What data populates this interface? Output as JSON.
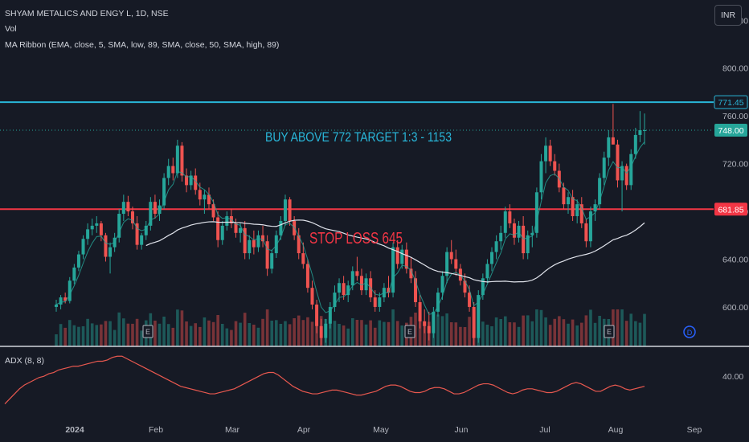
{
  "header": {
    "symbol_line": "SHYAM METALICS AND ENGY L, 1D, NSE",
    "vol_label": "Vol",
    "ma_ribbon_label": "MA Ribbon (EMA, close, 5, SMA, low, 89, SMA, close, 50, SMA, high, 89)"
  },
  "currency_button": "INR",
  "adx_label": "ADX (8, 8)",
  "earnings_marker": "E",
  "dividend_marker": "D",
  "colors": {
    "background": "#161a25",
    "up": "#26a69a",
    "down": "#ef5350",
    "resistance_line": "#29b6d8",
    "support_line": "#f23645",
    "ema_line": "#26a69a",
    "sma_line": "#e0e3eb",
    "adx_line": "#e8584f"
  },
  "chart_data": [
    {
      "type": "candlestick",
      "title": "SHYAM METALICS AND ENGY L, 1D, NSE",
      "y_axis": {
        "range": [
          567,
          857
        ],
        "ticks": [
          "840.00",
          "800.00",
          "760.00",
          "720.00",
          "680.00",
          "640.00",
          "600.00"
        ]
      },
      "x_axis": {
        "labels": [
          "2024",
          "Feb",
          "Mar",
          "Apr",
          "May",
          "Jun",
          "Jul",
          "Aug",
          "Sep"
        ]
      },
      "grid": false,
      "horizontal_lines": [
        {
          "price": 771.45,
          "label": "771.45",
          "role": "resistance"
        },
        {
          "price": 681.85,
          "label": "681.85",
          "role": "support"
        }
      ],
      "last_price": {
        "value": 748.0,
        "label": "748.00"
      },
      "annotations": [
        "BUY ABOVE 772 TARGET 1:3 - 1153",
        "STOP LOSS 645"
      ],
      "series": [
        {
          "kind": "ohlc",
          "values": [
            [
              600,
              606,
              596,
              602
            ],
            [
              602,
              610,
              598,
              608
            ],
            [
              608,
              612,
              603,
              605
            ],
            [
              605,
              625,
              603,
              622
            ],
            [
              622,
              636,
              619,
              633
            ],
            [
              633,
              647,
              630,
              644
            ],
            [
              644,
              660,
              640,
              657
            ],
            [
              657,
              670,
              652,
              665
            ],
            [
              665,
              674,
              660,
              668
            ],
            [
              668,
              676,
              662,
              670
            ],
            [
              670,
              672,
              655,
              660
            ],
            [
              660,
              662,
              638,
              642
            ],
            [
              642,
              654,
              628,
              650
            ],
            [
              650,
              662,
              646,
              658
            ],
            [
              658,
              682,
              654,
              678
            ],
            [
              678,
              694,
              672,
              688
            ],
            [
              688,
              693,
              676,
              680
            ],
            [
              680,
              684,
              665,
              670
            ],
            [
              670,
              676,
              648,
              652
            ],
            [
              652,
              662,
              648,
              660
            ],
            [
              660,
              672,
              656,
              668
            ],
            [
              668,
              692,
              664,
              688
            ],
            [
              688,
              694,
              674,
              678
            ],
            [
              678,
              690,
              672,
              685
            ],
            [
              685,
              712,
              682,
              708
            ],
            [
              708,
              724,
              702,
              718
            ],
            [
              718,
              725,
              706,
              712
            ],
            [
              712,
              740,
              708,
              735
            ],
            [
              735,
              738,
              705,
              710
            ],
            [
              710,
              716,
              696,
              702
            ],
            [
              702,
              714,
              698,
              710
            ],
            [
              710,
              716,
              694,
              698
            ],
            [
              698,
              704,
              685,
              690
            ],
            [
              690,
              698,
              678,
              694
            ],
            [
              694,
              700,
              682,
              686
            ],
            [
              686,
              690,
              672,
              675
            ],
            [
              675,
              680,
              650,
              656
            ],
            [
              656,
              672,
              652,
              668
            ],
            [
              668,
              680,
              664,
              676
            ],
            [
              676,
              682,
              666,
              670
            ],
            [
              670,
              674,
              658,
              662
            ],
            [
              662,
              670,
              654,
              666
            ],
            [
              666,
              672,
              640,
              645
            ],
            [
              645,
              660,
              640,
              656
            ],
            [
              656,
              664,
              644,
              650
            ],
            [
              650,
              664,
              646,
              660
            ],
            [
              660,
              668,
              650,
              655
            ],
            [
              655,
              660,
              626,
              632
            ],
            [
              632,
              648,
              628,
              645
            ],
            [
              645,
              664,
              641,
              660
            ],
            [
              660,
              676,
              656,
              672
            ],
            [
              672,
              694,
              668,
              690
            ],
            [
              690,
              692,
              668,
              672
            ],
            [
              672,
              676,
              656,
              660
            ],
            [
              660,
              666,
              640,
              645
            ],
            [
              645,
              654,
              632,
              636
            ],
            [
              636,
              640,
              612,
              616
            ],
            [
              616,
              622,
              598,
              602
            ],
            [
              602,
              606,
              578,
              584
            ],
            [
              584,
              590,
              568,
              574
            ],
            [
              574,
              590,
              570,
              586
            ],
            [
              586,
              604,
              582,
              600
            ],
            [
              600,
              618,
              596,
              612
            ],
            [
              612,
              624,
              604,
              620
            ],
            [
              620,
              626,
              606,
              610
            ],
            [
              610,
              622,
              604,
              618
            ],
            [
              618,
              634,
              614,
              630
            ],
            [
              630,
              642,
              622,
              626
            ],
            [
              626,
              632,
              610,
              614
            ],
            [
              614,
              628,
              610,
              624
            ],
            [
              624,
              630,
              604,
              608
            ],
            [
              608,
              614,
              596,
              600
            ],
            [
              600,
              612,
              596,
              608
            ],
            [
              608,
              620,
              604,
              616
            ],
            [
              616,
              626,
              608,
              612
            ],
            [
              612,
              654,
              608,
              650
            ],
            [
              650,
              656,
              632,
              636
            ],
            [
              636,
              652,
              632,
              648
            ],
            [
              648,
              654,
              628,
              632
            ],
            [
              632,
              642,
              620,
              624
            ],
            [
              624,
              630,
              600,
              604
            ],
            [
              604,
              610,
              582,
              588
            ],
            [
              588,
              598,
              578,
              584
            ],
            [
              584,
              596,
              572,
              578
            ],
            [
              578,
              600,
              574,
              596
            ],
            [
              596,
              616,
              592,
              612
            ],
            [
              612,
              630,
              606,
              626
            ],
            [
              626,
              650,
              620,
              646
            ],
            [
              646,
              656,
              636,
              640
            ],
            [
              640,
              648,
              626,
              632
            ],
            [
              632,
              636,
              618,
              622
            ],
            [
              622,
              628,
              608,
              612
            ],
            [
              612,
              618,
              596,
              600
            ],
            [
              600,
              604,
              568,
              574
            ],
            [
              574,
              614,
              570,
              610
            ],
            [
              610,
              628,
              606,
              624
            ],
            [
              624,
              640,
              620,
              636
            ],
            [
              636,
              650,
              630,
              646
            ],
            [
              646,
              660,
              640,
              655
            ],
            [
              655,
              668,
              648,
              662
            ],
            [
              662,
              684,
              658,
              680
            ],
            [
              680,
              686,
              666,
              670
            ],
            [
              670,
              674,
              652,
              658
            ],
            [
              658,
              672,
              654,
              668
            ],
            [
              668,
              676,
              640,
              645
            ],
            [
              645,
              664,
              640,
              660
            ],
            [
              660,
              668,
              650,
              662
            ],
            [
              662,
              700,
              658,
              696
            ],
            [
              696,
              728,
              690,
              722
            ],
            [
              722,
              742,
              712,
              735
            ],
            [
              735,
              740,
              718,
              722
            ],
            [
              722,
              728,
              710,
              714
            ],
            [
              714,
              720,
              696,
              700
            ],
            [
              700,
              704,
              682,
              686
            ],
            [
              686,
              696,
              678,
              692
            ],
            [
              692,
              698,
              672,
              676
            ],
            [
              676,
              690,
              670,
              686
            ],
            [
              686,
              692,
              666,
              670
            ],
            [
              670,
              674,
              650,
              655
            ],
            [
              655,
              684,
              650,
              680
            ],
            [
              680,
              690,
              672,
              686
            ],
            [
              686,
              712,
              682,
              708
            ],
            [
              708,
              730,
              702,
              725
            ],
            [
              725,
              748,
              718,
              742
            ],
            [
              742,
              770,
              736,
              736
            ],
            [
              736,
              740,
              700,
              706
            ],
            [
              706,
              722,
              680,
              718
            ],
            [
              718,
              720,
              698,
              702
            ],
            [
              702,
              732,
              698,
              728
            ],
            [
              728,
              750,
              724,
              744
            ],
            [
              744,
              764,
              738,
              748
            ],
            [
              748,
              762,
              736,
              748
            ]
          ]
        },
        {
          "name": "MA Ribbon EMA 5",
          "kind": "line"
        },
        {
          "name": "MA Ribbon SMA 50",
          "kind": "line"
        },
        {
          "kind": "volume"
        }
      ]
    },
    {
      "type": "line",
      "title": "ADX (8, 8)",
      "y_axis": {
        "ticks": [
          "40.00"
        ]
      },
      "grid": false,
      "series": [
        {
          "name": "ADX (8, 8)",
          "values": [
            18,
            22,
            26,
            30,
            33,
            35,
            37,
            39,
            40,
            42,
            43,
            45,
            46,
            47,
            48,
            48,
            49,
            50,
            51,
            52,
            52,
            53,
            55,
            56,
            56,
            54,
            52,
            50,
            48,
            46,
            44,
            42,
            40,
            38,
            36,
            34,
            32,
            31,
            30,
            29,
            28,
            27,
            26,
            26,
            27,
            28,
            29,
            30,
            32,
            34,
            36,
            38,
            40,
            42,
            43,
            43,
            41,
            38,
            35,
            32,
            30,
            28,
            27,
            26,
            26,
            27,
            28,
            29,
            29,
            28,
            27,
            26,
            25,
            25,
            26,
            27,
            28,
            30,
            32,
            33,
            33,
            32,
            30,
            28,
            27,
            27,
            28,
            30,
            31,
            31,
            30,
            28,
            26,
            26,
            27,
            29,
            31,
            33,
            34,
            34,
            33,
            31,
            29,
            27,
            26,
            27,
            29,
            30,
            30,
            29,
            28,
            27,
            27,
            28,
            30,
            32,
            34,
            35,
            34,
            32,
            30,
            28,
            28,
            30,
            32,
            33,
            32,
            30,
            29,
            30,
            31,
            32
          ]
        }
      ]
    }
  ]
}
